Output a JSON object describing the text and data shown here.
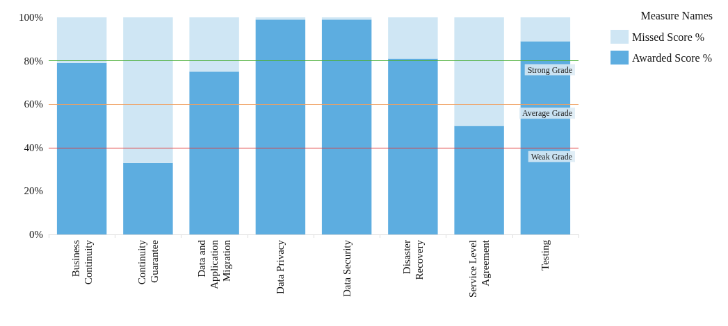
{
  "chart_data": {
    "type": "bar",
    "stacked": true,
    "legend_title": "Measure Names",
    "legend": "top right",
    "grid": false,
    "categories": [
      "Business Continuity",
      "Continuity Guarantee",
      "Data and Application Migration",
      "Data Privacy",
      "Data Security",
      "Disaster Recovery",
      "Service Level Agreement",
      "Testing"
    ],
    "series": [
      {
        "name": "Awarded Score %",
        "color": "#5dade0",
        "values": [
          79,
          33,
          75,
          99,
          99,
          81,
          50,
          89
        ]
      },
      {
        "name": "Missed Score %",
        "color": "#cfe6f4",
        "values": [
          21,
          67,
          25,
          1,
          1,
          19,
          50,
          11
        ]
      }
    ],
    "ylim": [
      0,
      100
    ],
    "yticks": [
      {
        "value": 0,
        "label": "0%"
      },
      {
        "value": 20,
        "label": "20%"
      },
      {
        "value": 40,
        "label": "40%"
      },
      {
        "value": 60,
        "label": "60%"
      },
      {
        "value": 80,
        "label": "80%"
      },
      {
        "value": 100,
        "label": "100%"
      }
    ],
    "ref_lines": [
      {
        "axis": "y",
        "value": 80,
        "label": "Strong Grade",
        "color": "#4caf3a"
      },
      {
        "axis": "y",
        "value": 60,
        "label": "Average Grade",
        "color": "#f0a060"
      },
      {
        "axis": "y",
        "value": 40,
        "label": "Weak Grade",
        "color": "#e03a3a"
      }
    ]
  }
}
